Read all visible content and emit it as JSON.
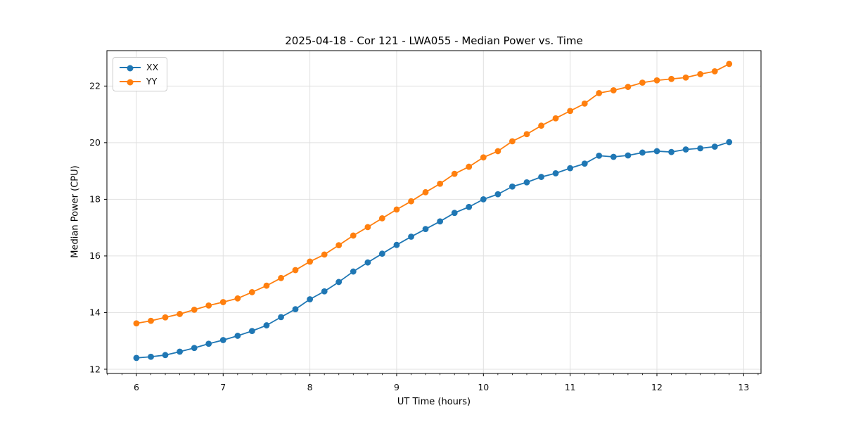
{
  "chart_data": {
    "type": "line",
    "title": "2025-04-18 - Cor 121 - LWA055 - Median Power vs. Time",
    "xlabel": "UT Time (hours)",
    "ylabel": "Median Power (CPU)",
    "x": [
      6.0,
      6.167,
      6.333,
      6.5,
      6.667,
      6.833,
      7.0,
      7.167,
      7.333,
      7.5,
      7.667,
      7.833,
      8.0,
      8.167,
      8.333,
      8.5,
      8.667,
      8.833,
      9.0,
      9.167,
      9.333,
      9.5,
      9.667,
      9.833,
      10.0,
      10.167,
      10.333,
      10.5,
      10.667,
      10.833,
      11.0,
      11.167,
      11.333,
      11.5,
      11.667,
      11.833,
      12.0,
      12.167,
      12.333,
      12.5,
      12.667,
      12.833
    ],
    "series": [
      {
        "name": "XX",
        "color": "#1f77b4",
        "values": [
          12.4,
          12.44,
          12.5,
          12.62,
          12.75,
          12.9,
          13.03,
          13.18,
          13.35,
          13.55,
          13.84,
          14.12,
          14.47,
          14.75,
          15.08,
          15.45,
          15.77,
          16.08,
          16.39,
          16.68,
          16.95,
          17.22,
          17.52,
          17.73,
          18.0,
          18.18,
          18.45,
          18.6,
          18.79,
          18.92,
          19.1,
          19.26,
          19.54,
          19.5,
          19.55,
          19.65,
          19.7,
          19.67,
          19.76,
          19.8,
          19.86,
          20.02
        ]
      },
      {
        "name": "YY",
        "color": "#ff7f0e",
        "values": [
          13.62,
          13.71,
          13.83,
          13.95,
          14.1,
          14.25,
          14.37,
          14.5,
          14.72,
          14.95,
          15.22,
          15.5,
          15.8,
          16.05,
          16.38,
          16.72,
          17.02,
          17.33,
          17.64,
          17.93,
          18.25,
          18.55,
          18.9,
          19.15,
          19.48,
          19.7,
          20.05,
          20.3,
          20.6,
          20.86,
          21.12,
          21.38,
          21.75,
          21.85,
          21.97,
          22.12,
          22.2,
          22.25,
          22.3,
          22.42,
          22.52,
          22.78
        ]
      }
    ],
    "xlim": [
      5.66,
      13.2
    ],
    "ylim": [
      11.85,
      23.25
    ],
    "xticks": [
      6,
      7,
      8,
      9,
      10,
      11,
      12,
      13
    ],
    "yticks": [
      12,
      14,
      16,
      18,
      20,
      22
    ],
    "x_minor_step": 0.166667,
    "grid": true,
    "grid_color": "#e0e0e0",
    "spine_color": "#000000",
    "tick_label_color": "#111111",
    "legend_position": "upper left",
    "marker": "circle",
    "background": "#ffffff"
  }
}
